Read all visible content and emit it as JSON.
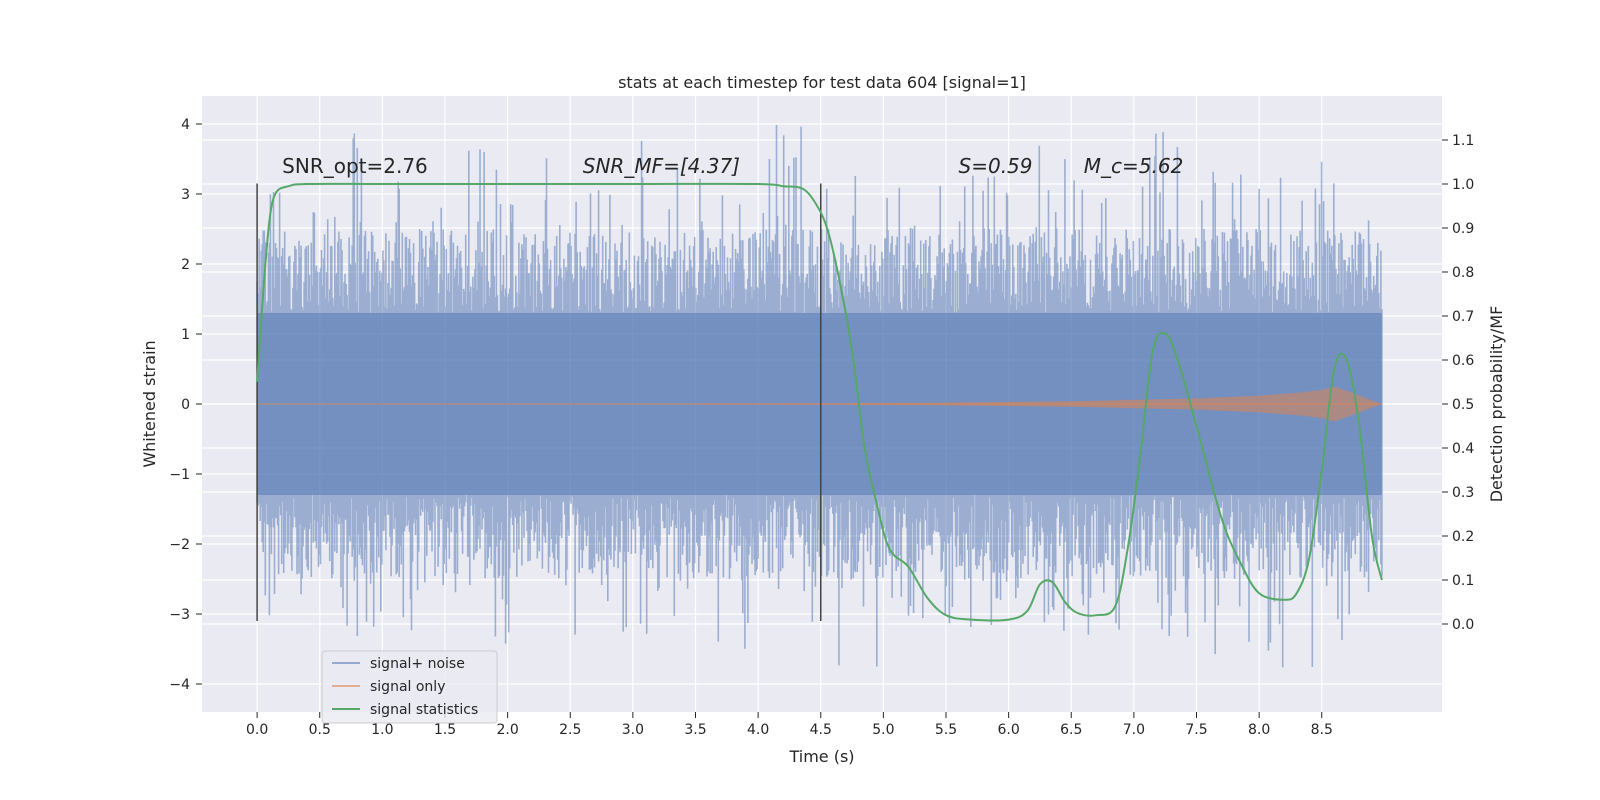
{
  "chart_data": {
    "type": "line",
    "title": "stats at each timestep for test data 604 [signal=1]",
    "xlabel": "Time (s)",
    "ylabel_left": "Whitened strain",
    "ylabel_right": "Detection probability/MF",
    "xlim": [
      -0.44,
      9.46
    ],
    "ylim_left": [
      -4.4,
      4.4
    ],
    "ylim_right": [
      -0.2,
      1.2
    ],
    "x_ticks": [
      0.0,
      0.5,
      1.0,
      1.5,
      2.0,
      2.5,
      3.0,
      3.5,
      4.0,
      4.5,
      5.0,
      5.5,
      6.0,
      6.5,
      7.0,
      7.5,
      8.0,
      8.5
    ],
    "x_tick_labels": [
      "0.0",
      "0.5",
      "1.0",
      "1.5",
      "2.0",
      "2.5",
      "3.0",
      "3.5",
      "4.0",
      "4.5",
      "5.0",
      "5.5",
      "6.0",
      "6.5",
      "7.0",
      "7.5",
      "8.0",
      "8.5"
    ],
    "y_left_ticks": [
      -4,
      -3,
      -2,
      -1,
      0,
      1,
      2,
      3,
      4
    ],
    "y_left_tick_labels": [
      "−4",
      "−3",
      "−2",
      "−1",
      "0",
      "1",
      "2",
      "3",
      "4"
    ],
    "y_right_ticks": [
      0.0,
      0.1,
      0.2,
      0.3,
      0.4,
      0.5,
      0.6,
      0.7,
      0.8,
      0.9,
      1.0,
      1.1
    ],
    "y_right_tick_labels": [
      "0.0",
      "0.1",
      "0.2",
      "0.3",
      "0.4",
      "0.5",
      "0.6",
      "0.7",
      "0.8",
      "0.9",
      "1.0",
      "1.1"
    ],
    "grid": true,
    "legend_position": "lower-left",
    "annotations": [
      {
        "text": "SNR_opt=2.76",
        "x": 0.2,
        "y": 3.3
      },
      {
        "text": "SNR_MF=[4.37]",
        "x": 2.6,
        "y": 3.3
      },
      {
        "text": "S=0.59",
        "x": 5.6,
        "y": 3.3
      },
      {
        "text": "M_c=5.62",
        "x": 6.6,
        "y": 3.3
      }
    ],
    "vlines": [
      {
        "x": 0.0,
        "ymin": -3.1,
        "ymax": 3.15
      },
      {
        "x": 4.5,
        "ymin": -3.1,
        "ymax": 3.15
      }
    ],
    "series": [
      {
        "name": "signal+ noise",
        "axis": "left",
        "color": "#4c72b0",
        "t_start": 0.0,
        "t_end": 8.98,
        "envelope_inner": 1.3,
        "envelope_outer_typical": 2.5,
        "peak_values": [
          3.1,
          3.9,
          3.3,
          3.9,
          3.6,
          3.3,
          3.8,
          3.5,
          4.0,
          3.7,
          3.6,
          3.4,
          3.7,
          3.8,
          3.9,
          3.6,
          3.5,
          3.5
        ],
        "trough_values": [
          -3.1,
          -3.4,
          -3.3,
          -3.5,
          -3.3,
          -3.4,
          -3.4,
          -3.5,
          -3.6,
          -3.8,
          -3.1,
          -3.2,
          -3.3,
          -3.3,
          -3.4,
          -3.6,
          -3.8,
          -3.7
        ]
      },
      {
        "name": "signal only",
        "axis": "left",
        "color": "#dd8452",
        "x": [
          0.0,
          4.5,
          5.5,
          6.5,
          7.0,
          7.5,
          8.0,
          8.3,
          8.5,
          8.6,
          8.8,
          8.98
        ],
        "amplitude": [
          0.0,
          0.01,
          0.02,
          0.04,
          0.06,
          0.08,
          0.12,
          0.16,
          0.2,
          0.25,
          0.12,
          0.0
        ]
      },
      {
        "name": "signal statistics",
        "axis": "right",
        "color": "#55a868",
        "x": [
          0.0,
          0.05,
          0.1,
          0.15,
          0.25,
          0.4,
          1.0,
          2.0,
          3.0,
          4.0,
          4.2,
          4.35,
          4.45,
          4.55,
          4.65,
          4.75,
          4.85,
          4.95,
          5.05,
          5.2,
          5.35,
          5.5,
          5.7,
          6.0,
          6.15,
          6.25,
          6.35,
          6.45,
          6.55,
          6.7,
          6.85,
          6.95,
          7.05,
          7.15,
          7.25,
          7.35,
          7.5,
          7.7,
          7.85,
          8.0,
          8.2,
          8.3,
          8.4,
          8.5,
          8.6,
          8.7,
          8.8,
          8.9,
          8.98
        ],
        "y": [
          0.55,
          0.76,
          0.92,
          0.98,
          0.995,
          1.0,
          1.0,
          1.0,
          1.0,
          1.0,
          0.995,
          0.99,
          0.96,
          0.9,
          0.78,
          0.62,
          0.4,
          0.27,
          0.17,
          0.13,
          0.06,
          0.02,
          0.01,
          0.01,
          0.03,
          0.09,
          0.095,
          0.05,
          0.025,
          0.02,
          0.04,
          0.17,
          0.38,
          0.62,
          0.66,
          0.6,
          0.45,
          0.24,
          0.14,
          0.07,
          0.055,
          0.07,
          0.15,
          0.35,
          0.58,
          0.6,
          0.45,
          0.2,
          0.1
        ]
      }
    ]
  }
}
